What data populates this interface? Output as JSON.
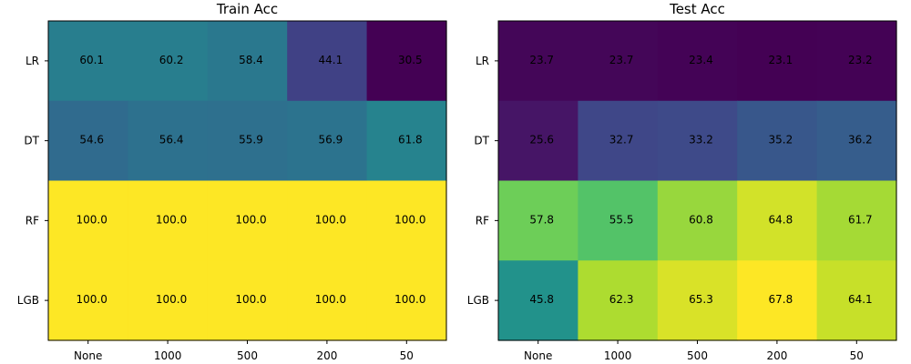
{
  "chart_data": [
    {
      "type": "heatmap",
      "title": "Train Acc",
      "rows": [
        "LR",
        "DT",
        "RF",
        "LGB"
      ],
      "columns": [
        "None",
        "1000",
        "500",
        "200",
        "50"
      ],
      "values": [
        [
          60.1,
          60.2,
          58.4,
          44.1,
          30.5
        ],
        [
          54.6,
          56.4,
          55.9,
          56.9,
          61.8
        ],
        [
          100.0,
          100.0,
          100.0,
          100.0,
          100.0
        ],
        [
          100.0,
          100.0,
          100.0,
          100.0,
          100.0
        ]
      ],
      "colormap": "viridis",
      "grid": false
    },
    {
      "type": "heatmap",
      "title": "Test Acc",
      "rows": [
        "LR",
        "DT",
        "RF",
        "LGB"
      ],
      "columns": [
        "None",
        "1000",
        "500",
        "200",
        "50"
      ],
      "values": [
        [
          23.7,
          23.7,
          23.4,
          23.1,
          23.2
        ],
        [
          25.6,
          32.7,
          33.2,
          35.2,
          36.2
        ],
        [
          57.8,
          55.5,
          60.8,
          64.8,
          61.7
        ],
        [
          45.8,
          62.3,
          65.3,
          67.8,
          64.1
        ]
      ],
      "colormap": "viridis",
      "grid": false
    }
  ]
}
